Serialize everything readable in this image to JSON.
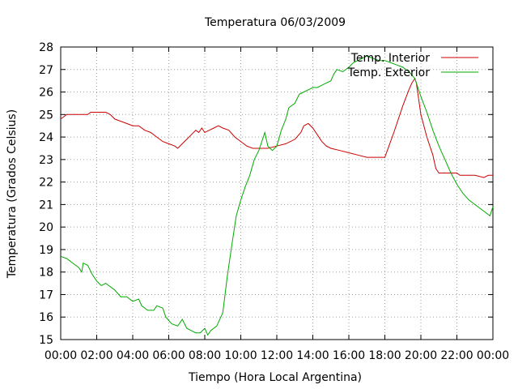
{
  "chart_data": {
    "type": "line",
    "title": "Temperatura 06/03/2009",
    "xlabel": "Tiempo (Hora Local Argentina)",
    "ylabel": "Temperatura (Grados Celsius)",
    "xlim": [
      "00:00",
      "24:00"
    ],
    "ylim": [
      15,
      28
    ],
    "x_ticks": [
      "00:00",
      "02:00",
      "04:00",
      "06:00",
      "08:00",
      "10:00",
      "12:00",
      "14:00",
      "16:00",
      "18:00",
      "20:00",
      "22:00",
      "00:00"
    ],
    "y_ticks": [
      15,
      16,
      17,
      18,
      19,
      20,
      21,
      22,
      23,
      24,
      25,
      26,
      27,
      28
    ],
    "grid": true,
    "legend_position": "top-right",
    "series": [
      {
        "name": "Temp. Interior",
        "color": "#cc0000",
        "points": [
          [
            "00:00",
            24.8
          ],
          [
            "00:10",
            24.9
          ],
          [
            "00:20",
            25.0
          ],
          [
            "01:00",
            25.0
          ],
          [
            "01:30",
            25.0
          ],
          [
            "01:40",
            25.1
          ],
          [
            "02:30",
            25.1
          ],
          [
            "02:45",
            25.0
          ],
          [
            "03:00",
            24.8
          ],
          [
            "03:20",
            24.7
          ],
          [
            "03:40",
            24.6
          ],
          [
            "04:00",
            24.5
          ],
          [
            "04:20",
            24.5
          ],
          [
            "04:40",
            24.3
          ],
          [
            "05:00",
            24.2
          ],
          [
            "05:20",
            24.0
          ],
          [
            "05:40",
            23.8
          ],
          [
            "06:00",
            23.7
          ],
          [
            "06:20",
            23.6
          ],
          [
            "06:30",
            23.5
          ],
          [
            "06:45",
            23.7
          ],
          [
            "07:00",
            23.9
          ],
          [
            "07:15",
            24.1
          ],
          [
            "07:30",
            24.3
          ],
          [
            "07:40",
            24.2
          ],
          [
            "07:50",
            24.4
          ],
          [
            "08:00",
            24.2
          ],
          [
            "08:15",
            24.3
          ],
          [
            "08:30",
            24.4
          ],
          [
            "08:45",
            24.5
          ],
          [
            "09:00",
            24.4
          ],
          [
            "09:20",
            24.3
          ],
          [
            "09:40",
            24.0
          ],
          [
            "10:00",
            23.8
          ],
          [
            "10:20",
            23.6
          ],
          [
            "10:40",
            23.5
          ],
          [
            "11:00",
            23.5
          ],
          [
            "11:30",
            23.5
          ],
          [
            "12:00",
            23.6
          ],
          [
            "12:30",
            23.7
          ],
          [
            "13:00",
            23.9
          ],
          [
            "13:20",
            24.2
          ],
          [
            "13:30",
            24.5
          ],
          [
            "13:45",
            24.6
          ],
          [
            "14:00",
            24.4
          ],
          [
            "14:15",
            24.1
          ],
          [
            "14:30",
            23.8
          ],
          [
            "14:45",
            23.6
          ],
          [
            "15:00",
            23.5
          ],
          [
            "15:30",
            23.4
          ],
          [
            "16:00",
            23.3
          ],
          [
            "16:30",
            23.2
          ],
          [
            "17:00",
            23.1
          ],
          [
            "17:30",
            23.1
          ],
          [
            "18:00",
            23.1
          ],
          [
            "18:30",
            24.2
          ],
          [
            "19:00",
            25.4
          ],
          [
            "19:20",
            26.1
          ],
          [
            "19:30",
            26.4
          ],
          [
            "19:40",
            26.6
          ],
          [
            "19:45",
            26.4
          ],
          [
            "20:00",
            25.0
          ],
          [
            "20:20",
            24.0
          ],
          [
            "20:40",
            23.2
          ],
          [
            "20:50",
            22.6
          ],
          [
            "21:00",
            22.4
          ],
          [
            "22:00",
            22.4
          ],
          [
            "22:10",
            22.3
          ],
          [
            "23:00",
            22.3
          ],
          [
            "23:30",
            22.2
          ],
          [
            "23:45",
            22.3
          ],
          [
            "24:00",
            22.3
          ]
        ]
      },
      {
        "name": "Temp. Exterior",
        "color": "#00aa00",
        "points": [
          [
            "00:00",
            18.7
          ],
          [
            "00:20",
            18.6
          ],
          [
            "00:40",
            18.4
          ],
          [
            "01:00",
            18.2
          ],
          [
            "01:10",
            18.0
          ],
          [
            "01:15",
            18.4
          ],
          [
            "01:30",
            18.3
          ],
          [
            "01:45",
            17.9
          ],
          [
            "02:00",
            17.6
          ],
          [
            "02:15",
            17.4
          ],
          [
            "02:30",
            17.5
          ],
          [
            "03:00",
            17.2
          ],
          [
            "03:20",
            16.9
          ],
          [
            "03:40",
            16.9
          ],
          [
            "04:00",
            16.7
          ],
          [
            "04:20",
            16.8
          ],
          [
            "04:30",
            16.5
          ],
          [
            "04:50",
            16.3
          ],
          [
            "05:10",
            16.3
          ],
          [
            "05:20",
            16.5
          ],
          [
            "05:40",
            16.4
          ],
          [
            "05:50",
            16.0
          ],
          [
            "06:10",
            15.7
          ],
          [
            "06:30",
            15.6
          ],
          [
            "06:45",
            15.9
          ],
          [
            "07:00",
            15.5
          ],
          [
            "07:15",
            15.4
          ],
          [
            "07:30",
            15.3
          ],
          [
            "07:45",
            15.3
          ],
          [
            "08:00",
            15.5
          ],
          [
            "08:10",
            15.2
          ],
          [
            "08:20",
            15.4
          ],
          [
            "08:40",
            15.6
          ],
          [
            "09:00",
            16.2
          ],
          [
            "09:15",
            17.8
          ],
          [
            "09:30",
            19.2
          ],
          [
            "09:45",
            20.5
          ],
          [
            "10:00",
            21.2
          ],
          [
            "10:15",
            21.8
          ],
          [
            "10:30",
            22.3
          ],
          [
            "10:45",
            23.0
          ],
          [
            "11:00",
            23.4
          ],
          [
            "11:10",
            23.8
          ],
          [
            "11:20",
            24.2
          ],
          [
            "11:30",
            23.6
          ],
          [
            "11:45",
            23.4
          ],
          [
            "12:00",
            23.6
          ],
          [
            "12:15",
            24.3
          ],
          [
            "12:30",
            24.8
          ],
          [
            "12:40",
            25.3
          ],
          [
            "13:00",
            25.5
          ],
          [
            "13:15",
            25.9
          ],
          [
            "13:30",
            26.0
          ],
          [
            "13:45",
            26.1
          ],
          [
            "14:00",
            26.2
          ],
          [
            "14:15",
            26.2
          ],
          [
            "14:30",
            26.3
          ],
          [
            "14:45",
            26.4
          ],
          [
            "15:00",
            26.5
          ],
          [
            "15:10",
            26.8
          ],
          [
            "15:20",
            27.0
          ],
          [
            "15:40",
            26.9
          ],
          [
            "16:00",
            27.1
          ],
          [
            "16:15",
            27.3
          ],
          [
            "16:30",
            27.4
          ],
          [
            "16:45",
            27.5
          ],
          [
            "17:00",
            27.6
          ],
          [
            "17:20",
            27.5
          ],
          [
            "17:40",
            27.4
          ],
          [
            "18:00",
            27.4
          ],
          [
            "18:20",
            27.3
          ],
          [
            "18:40",
            27.2
          ],
          [
            "19:00",
            27.1
          ],
          [
            "19:20",
            26.9
          ],
          [
            "19:40",
            26.6
          ],
          [
            "20:00",
            25.8
          ],
          [
            "20:20",
            25.1
          ],
          [
            "20:40",
            24.3
          ],
          [
            "21:00",
            23.6
          ],
          [
            "21:20",
            23.0
          ],
          [
            "21:40",
            22.4
          ],
          [
            "22:00",
            21.9
          ],
          [
            "22:20",
            21.5
          ],
          [
            "22:40",
            21.2
          ],
          [
            "23:00",
            21.0
          ],
          [
            "23:20",
            20.8
          ],
          [
            "23:40",
            20.6
          ],
          [
            "23:50",
            20.5
          ],
          [
            "24:00",
            20.9
          ]
        ]
      }
    ]
  }
}
